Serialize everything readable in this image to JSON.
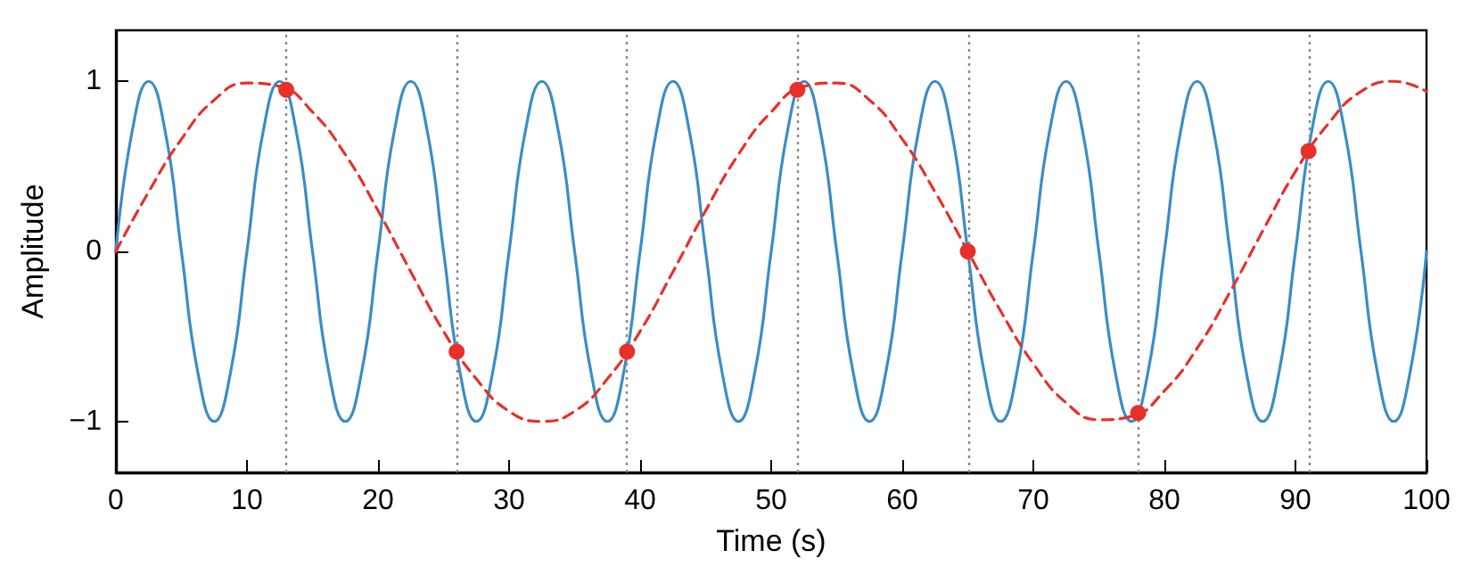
{
  "chart_data": {
    "type": "line",
    "xlabel": "Time (s)",
    "ylabel": "Amplitude",
    "xlim": [
      0,
      100
    ],
    "xticks": [
      0,
      10,
      20,
      30,
      40,
      50,
      60,
      70,
      80,
      90,
      100
    ],
    "ylim": [
      -1.3,
      1.3
    ],
    "yticks": [
      {
        "value": -1,
        "label": "−1"
      },
      0,
      1
    ],
    "grid": false,
    "series": [
      {
        "color": "#3b8dc5",
        "marker": "none",
        "line_style": "solid",
        "x": [
          0,
          1.25,
          2.5,
          3.75,
          5,
          6.25,
          7.5,
          8.75,
          10,
          11.25,
          12.5,
          13.75,
          15,
          16.25,
          17.5,
          18.75,
          20,
          21.25,
          22.5,
          23.75,
          25,
          26.25,
          27.5,
          28.75,
          30,
          31.25,
          32.5,
          33.75,
          35,
          36.25,
          37.5,
          38.75,
          40,
          41.25,
          42.5,
          43.75,
          45,
          46.25,
          47.5,
          48.75,
          50,
          51.25,
          52.5,
          53.75,
          55,
          56.25,
          57.5,
          58.75,
          60,
          61.25,
          62.5,
          63.75,
          65,
          66.25,
          67.5,
          68.75,
          70,
          71.25,
          72.5,
          73.75,
          75,
          76.25,
          77.5,
          78.75,
          80,
          81.25,
          82.5,
          83.75,
          85,
          86.25,
          87.5,
          88.75,
          90,
          91.25,
          92.5,
          93.75,
          95,
          96.25,
          97.5,
          98.75,
          100
        ],
        "values": [
          0,
          0.71,
          1,
          0.71,
          0,
          -0.71,
          -1,
          -0.71,
          0,
          0.71,
          1,
          0.71,
          0,
          -0.71,
          -1,
          -0.71,
          0,
          0.71,
          1,
          0.71,
          0,
          -0.71,
          -1,
          -0.71,
          0,
          0.71,
          1,
          0.71,
          0,
          -0.71,
          -1,
          -0.71,
          0,
          0.71,
          1,
          0.71,
          0,
          -0.71,
          -1,
          -0.71,
          0,
          0.71,
          1,
          0.71,
          0,
          -0.71,
          -1,
          -0.71,
          0,
          0.71,
          1,
          0.71,
          0,
          -0.71,
          -1,
          -0.71,
          0,
          0.71,
          1,
          0.71,
          0,
          -0.71,
          -1,
          -0.71,
          0,
          0.71,
          1,
          0.71,
          0,
          -0.71,
          -1,
          -0.71,
          0,
          0.71,
          1,
          0.71,
          0,
          -0.71,
          -1,
          -0.71,
          0
        ]
      },
      {
        "color": "#e8302a",
        "marker": "none",
        "line_style": "dashed",
        "x": [
          0,
          2.5,
          5,
          7.5,
          10,
          12.5,
          15,
          17.5,
          20,
          22.5,
          25,
          27.5,
          30,
          32.5,
          35,
          37.5,
          40,
          42.5,
          45,
          47.5,
          50,
          52.5,
          55,
          57.5,
          60,
          62.5,
          65,
          67.5,
          70,
          72.5,
          75,
          77.5,
          80,
          82.5,
          85,
          87.5,
          90,
          92.5,
          95,
          97.5,
          100
        ],
        "values": [
          0,
          0.35,
          0.66,
          0.89,
          0.99,
          0.97,
          0.82,
          0.57,
          0.24,
          -0.12,
          -0.47,
          -0.75,
          -0.94,
          -1,
          -0.94,
          -0.75,
          -0.47,
          -0.12,
          0.24,
          0.57,
          0.82,
          0.97,
          0.99,
          0.89,
          0.66,
          0.35,
          0,
          -0.35,
          -0.66,
          -0.89,
          -0.99,
          -0.97,
          -0.82,
          -0.57,
          -0.24,
          0.12,
          0.47,
          0.75,
          0.94,
          1,
          0.94
        ]
      },
      {
        "type": "scatter",
        "color": "#e8302a",
        "marker": "circle",
        "x": [
          13,
          26,
          39,
          52,
          65,
          78,
          91
        ],
        "values": [
          0.95,
          -0.59,
          -0.59,
          0.95,
          0,
          -0.95,
          0.59
        ]
      }
    ],
    "ref_lines": [
      {
        "axis": "x",
        "value": 13,
        "color": "#888888",
        "line_style": "dotted"
      },
      {
        "axis": "x",
        "value": 26,
        "color": "#888888",
        "line_style": "dotted"
      },
      {
        "axis": "x",
        "value": 39,
        "color": "#888888",
        "line_style": "dotted"
      },
      {
        "axis": "x",
        "value": 52,
        "color": "#888888",
        "line_style": "dotted"
      },
      {
        "axis": "x",
        "value": 65,
        "color": "#888888",
        "line_style": "dotted"
      },
      {
        "axis": "x",
        "value": 78,
        "color": "#888888",
        "line_style": "dotted"
      },
      {
        "axis": "x",
        "value": 91,
        "color": "#888888",
        "line_style": "dotted"
      }
    ]
  }
}
